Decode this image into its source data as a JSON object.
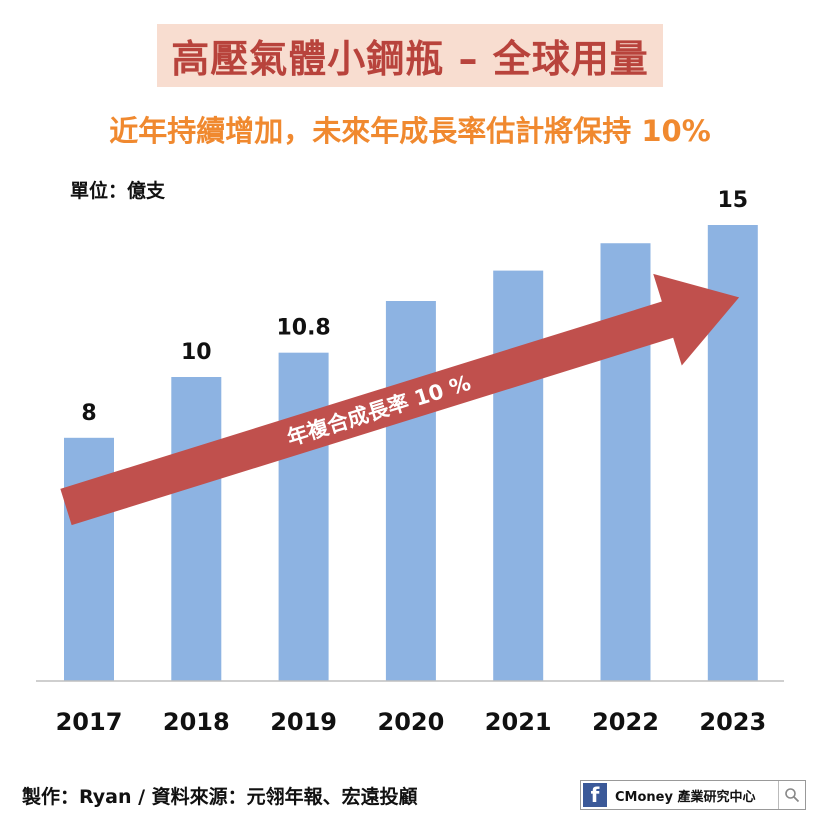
{
  "title": "高壓氣體小鋼瓶 – 全球用量",
  "subtitle": "近年持續增加，未來年成長率估計將保持 10%",
  "unit_label": "單位：億支",
  "footer": "製作：Ryan / 資料來源：元翎年報、宏遠投顧",
  "brand": {
    "name": "CMoney 產業研究中心",
    "fb_letter": "f",
    "icon": "search-icon"
  },
  "colors": {
    "bar": "#8db3e2",
    "arrow": "#c0504d",
    "title": "#b8433c",
    "title_bg": "#f8ddd0",
    "subtitle": "#f0892f"
  },
  "chart_data": {
    "type": "bar",
    "categories": [
      "2017",
      "2018",
      "2019",
      "2020",
      "2021",
      "2022",
      "2023"
    ],
    "values": [
      8,
      10,
      10.8,
      12.5,
      13.5,
      14.4,
      15
    ],
    "data_labels": [
      "8",
      "10",
      "10.8",
      "",
      "",
      "",
      "15"
    ],
    "ylim": [
      0,
      16
    ],
    "annotation": "年複合成長率 10 %",
    "grid": false,
    "xlabel": "",
    "ylabel": ""
  }
}
